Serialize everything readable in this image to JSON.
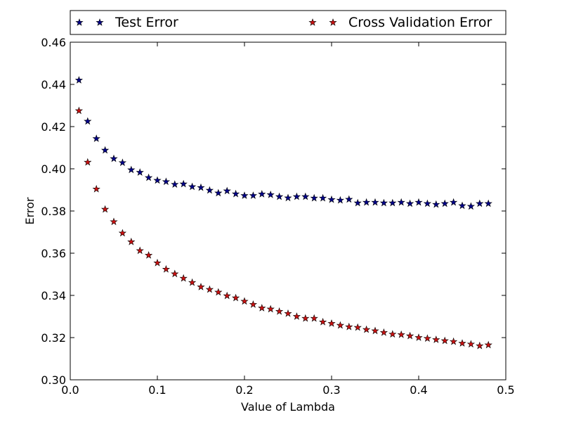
{
  "chart_data": {
    "type": "scatter",
    "title": "",
    "xlabel": "Value of Lambda",
    "ylabel": "Error",
    "xlim": [
      0.0,
      0.5
    ],
    "ylim": [
      0.3,
      0.46
    ],
    "x_ticks": [
      "0.0",
      "0.1",
      "0.2",
      "0.3",
      "0.4",
      "0.5"
    ],
    "y_ticks": [
      "0.30",
      "0.32",
      "0.34",
      "0.36",
      "0.38",
      "0.40",
      "0.42",
      "0.44",
      "0.46"
    ],
    "grid": false,
    "legend_position": "top, outside plot (two columns)",
    "marker": "star",
    "x": [
      0.01,
      0.02,
      0.03,
      0.04,
      0.05,
      0.06,
      0.07,
      0.08,
      0.09,
      0.1,
      0.11,
      0.12,
      0.13,
      0.14,
      0.15,
      0.16,
      0.17,
      0.18,
      0.19,
      0.2,
      0.21,
      0.22,
      0.23,
      0.24,
      0.25,
      0.26,
      0.27,
      0.28,
      0.29,
      0.3,
      0.31,
      0.32,
      0.33,
      0.34,
      0.35,
      0.36,
      0.37,
      0.38,
      0.39,
      0.4,
      0.41,
      0.42,
      0.43,
      0.44,
      0.45,
      0.46,
      0.47,
      0.48
    ],
    "series": [
      {
        "name": "Test Error",
        "color": "#00008b",
        "values": [
          0.442,
          0.4225,
          0.4143,
          0.4088,
          0.4048,
          0.4029,
          0.3995,
          0.3983,
          0.3958,
          0.3945,
          0.3939,
          0.3926,
          0.3928,
          0.3915,
          0.3911,
          0.3898,
          0.3885,
          0.3895,
          0.3881,
          0.3873,
          0.3873,
          0.388,
          0.3877,
          0.3868,
          0.3862,
          0.3868,
          0.3868,
          0.3861,
          0.3861,
          0.3854,
          0.3851,
          0.3855,
          0.3838,
          0.3841,
          0.3841,
          0.3838,
          0.3838,
          0.3841,
          0.3835,
          0.3841,
          0.3835,
          0.3831,
          0.3835,
          0.3841,
          0.3825,
          0.3822,
          0.3835,
          0.3835
        ]
      },
      {
        "name": "Cross Validation Error",
        "color": "#cc1111",
        "values": [
          0.4275,
          0.4031,
          0.3904,
          0.3808,
          0.3749,
          0.3695,
          0.3654,
          0.3612,
          0.359,
          0.3554,
          0.3524,
          0.3502,
          0.3481,
          0.3461,
          0.344,
          0.3428,
          0.3415,
          0.3398,
          0.3388,
          0.3372,
          0.3357,
          0.334,
          0.3335,
          0.3324,
          0.3314,
          0.33,
          0.3291,
          0.3291,
          0.3274,
          0.3267,
          0.3258,
          0.3251,
          0.3248,
          0.3238,
          0.3232,
          0.3224,
          0.3216,
          0.3214,
          0.3208,
          0.32,
          0.3196,
          0.319,
          0.3185,
          0.3181,
          0.3173,
          0.3169,
          0.3161,
          0.3165
        ]
      }
    ]
  }
}
